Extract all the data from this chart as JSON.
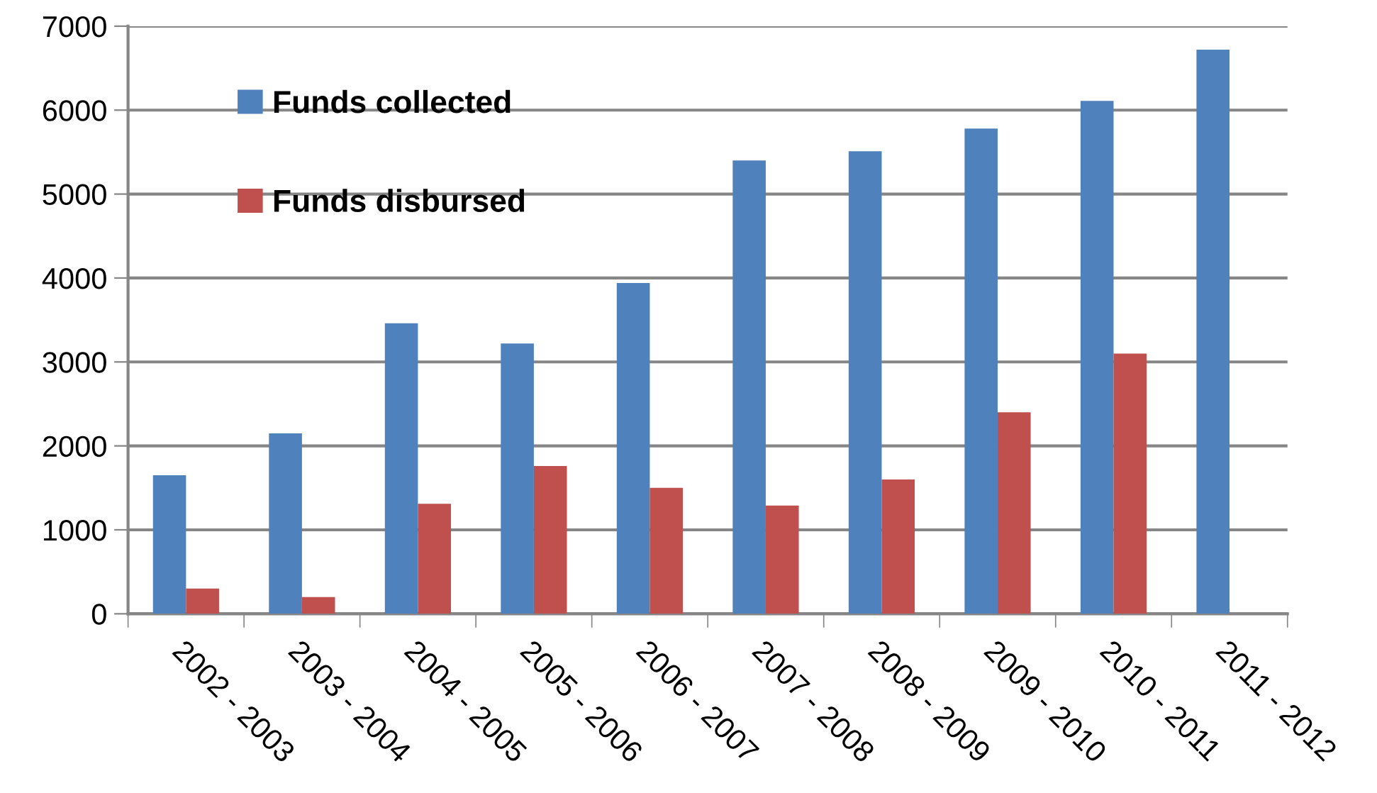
{
  "chart_data": {
    "type": "bar",
    "categories": [
      "2002 - 2003",
      "2003 - 2004",
      "2004 - 2005",
      "2005 - 2006",
      "2006 - 2007",
      "2007 - 2008",
      "2008 - 2009",
      "2009 - 2010",
      "2010 - 2011",
      "2011 - 2012"
    ],
    "series": [
      {
        "name": "Funds collected",
        "color": "#4f81bd",
        "values": [
          1650,
          2150,
          3460,
          3220,
          3940,
          5400,
          5510,
          5780,
          6110,
          6720
        ]
      },
      {
        "name": "Funds disbursed",
        "color": "#c0504d",
        "values": [
          300,
          200,
          1310,
          1760,
          1500,
          1290,
          1600,
          2400,
          3100,
          null
        ]
      }
    ],
    "ylim": [
      0,
      7000
    ],
    "yticks": [
      0,
      1000,
      2000,
      3000,
      4000,
      5000,
      6000,
      7000
    ],
    "grid": "y",
    "legend": "top left"
  }
}
